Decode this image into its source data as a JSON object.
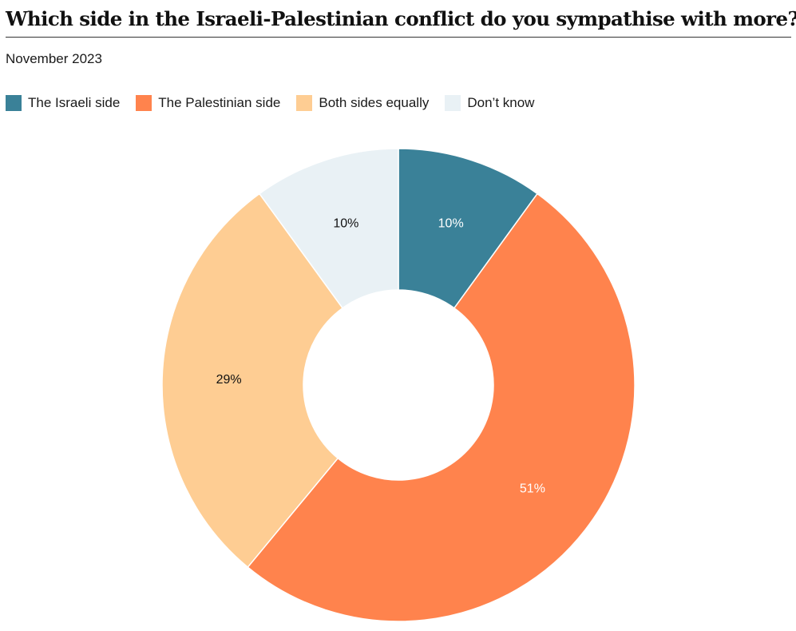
{
  "chart_data": {
    "type": "pie",
    "style": "donut",
    "title": "Which side in the Israeli-Palestinian conflict do you sympathise with more?",
    "subtitle": "November 2023",
    "legend_position": "top-left",
    "categories": [
      "The Israeli side",
      "The Palestinian side",
      "Both sides equally",
      "Don’t know"
    ],
    "values": [
      10,
      51,
      29,
      10
    ],
    "labels": [
      "10%",
      "51%",
      "29%",
      "10%"
    ],
    "colors": [
      "#3a8198",
      "#ff834d",
      "#fecd93",
      "#e9f1f5"
    ],
    "label_colors": [
      "#ffffff",
      "#ffffff",
      "#111111",
      "#111111"
    ]
  }
}
